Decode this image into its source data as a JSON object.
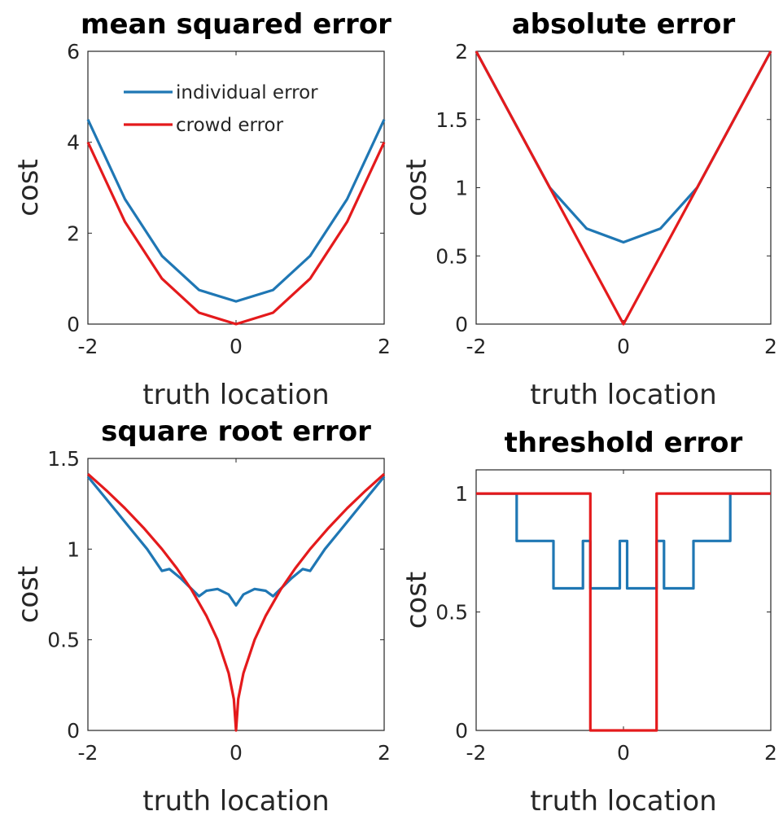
{
  "colors": {
    "individual": "#1f77b4",
    "crowd": "#e41a1c"
  },
  "legend": {
    "placement": "top-left",
    "entries": [
      "individual error",
      "crowd error"
    ]
  },
  "chart_data": [
    {
      "type": "line",
      "title": "mean squared error",
      "xlabel": "truth location",
      "ylabel": "cost",
      "xlim": [
        -2,
        2
      ],
      "ylim": [
        0,
        6
      ],
      "xticks": [
        "-2",
        "0",
        "2"
      ],
      "yticks": [
        "0",
        "2",
        "4",
        "6"
      ],
      "series": [
        {
          "name": "individual error",
          "color": "#1f77b4",
          "x": [
            -2,
            -1.5,
            -1,
            -0.5,
            0,
            0.5,
            1,
            1.5,
            2
          ],
          "y": [
            4.5,
            2.75,
            1.5,
            0.75,
            0.5,
            0.75,
            1.5,
            2.75,
            4.5
          ]
        },
        {
          "name": "crowd error",
          "color": "#e41a1c",
          "x": [
            -2,
            -1.5,
            -1,
            -0.5,
            0,
            0.5,
            1,
            1.5,
            2
          ],
          "y": [
            4,
            2.25,
            1,
            0.25,
            0,
            0.25,
            1,
            2.25,
            4
          ]
        }
      ]
    },
    {
      "type": "line",
      "title": "absolute error",
      "xlabel": "truth location",
      "ylabel": "cost",
      "xlim": [
        -2,
        2
      ],
      "ylim": [
        0,
        2
      ],
      "xticks": [
        "-2",
        "0",
        "2"
      ],
      "yticks": [
        "0",
        "0.5",
        "1",
        "1.5",
        "2"
      ],
      "series": [
        {
          "name": "individual error",
          "color": "#1f77b4",
          "x": [
            -2,
            -1,
            -0.5,
            0,
            0.5,
            1,
            2
          ],
          "y": [
            2,
            1,
            0.7,
            0.6,
            0.7,
            1,
            2
          ]
        },
        {
          "name": "crowd error",
          "color": "#e41a1c",
          "x": [
            -2,
            0,
            2
          ],
          "y": [
            2,
            0,
            2
          ]
        }
      ]
    },
    {
      "type": "line",
      "title": "square root error",
      "xlabel": "truth location",
      "ylabel": "cost",
      "xlim": [
        -2,
        2
      ],
      "ylim": [
        0,
        1.5
      ],
      "xticks": [
        "-2",
        "0",
        "2"
      ],
      "yticks": [
        "0",
        "0.5",
        "1",
        "1.5"
      ],
      "series": [
        {
          "name": "individual error",
          "color": "#1f77b4",
          "x": [
            -2,
            -1.8,
            -1.6,
            -1.4,
            -1.2,
            -1.0,
            -0.9,
            -0.75,
            -0.6,
            -0.5,
            -0.4,
            -0.25,
            -0.1,
            0,
            0.1,
            0.25,
            0.4,
            0.5,
            0.6,
            0.75,
            0.9,
            1.0,
            1.2,
            1.4,
            1.6,
            1.8,
            2
          ],
          "y": [
            1.4,
            1.3,
            1.2,
            1.1,
            1.0,
            0.88,
            0.89,
            0.84,
            0.78,
            0.74,
            0.77,
            0.78,
            0.75,
            0.69,
            0.75,
            0.78,
            0.77,
            0.74,
            0.78,
            0.84,
            0.89,
            0.88,
            1.0,
            1.1,
            1.2,
            1.3,
            1.4
          ]
        },
        {
          "name": "crowd error",
          "color": "#e41a1c",
          "x": [
            -2,
            -1.75,
            -1.5,
            -1.25,
            -1,
            -0.8,
            -0.6,
            -0.4,
            -0.25,
            -0.1,
            -0.03,
            0,
            0.03,
            0.1,
            0.25,
            0.4,
            0.6,
            0.8,
            1,
            1.25,
            1.5,
            1.75,
            2
          ],
          "y": [
            1.414,
            1.323,
            1.225,
            1.118,
            1.0,
            0.894,
            0.775,
            0.632,
            0.5,
            0.316,
            0.173,
            0,
            0.173,
            0.316,
            0.5,
            0.632,
            0.775,
            0.894,
            1.0,
            1.118,
            1.225,
            1.323,
            1.414
          ]
        }
      ]
    },
    {
      "type": "line",
      "title": "threshold error",
      "xlabel": "truth location",
      "ylabel": "cost",
      "xlim": [
        -2,
        2
      ],
      "ylim": [
        0,
        1.1
      ],
      "xticks": [
        "-2",
        "0",
        "2"
      ],
      "yticks": [
        "0",
        "0.5",
        "1"
      ],
      "series": [
        {
          "name": "individual error",
          "color": "#1f77b4",
          "x": [
            -2,
            -1.45,
            -1.45,
            -0.95,
            -0.95,
            -0.55,
            -0.55,
            -0.45,
            -0.45,
            -0.05,
            -0.05,
            0.05,
            0.05,
            0.45,
            0.45,
            0.55,
            0.55,
            0.95,
            0.95,
            1.45,
            1.45,
            2
          ],
          "y": [
            1,
            1,
            0.8,
            0.8,
            0.6,
            0.6,
            0.8,
            0.8,
            0.6,
            0.6,
            0.8,
            0.8,
            0.6,
            0.6,
            0.8,
            0.8,
            0.6,
            0.6,
            0.8,
            0.8,
            1,
            1
          ]
        },
        {
          "name": "crowd error",
          "color": "#e41a1c",
          "x": [
            -2,
            -0.45,
            -0.45,
            0.45,
            0.45,
            2
          ],
          "y": [
            1,
            1,
            0,
            0,
            1,
            1
          ]
        }
      ]
    }
  ]
}
